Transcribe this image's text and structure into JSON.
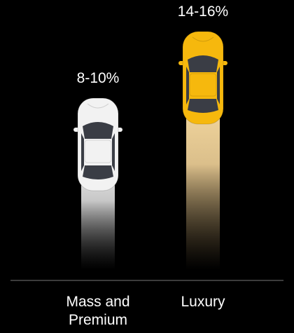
{
  "chart_data": {
    "type": "bar",
    "categories": [
      "Mass and Premium",
      "Luxury"
    ],
    "values": [
      [
        8,
        10
      ],
      [
        14,
        16
      ]
    ],
    "value_labels": [
      "8-10%",
      "14-16%"
    ],
    "colors": [
      "#f2f2f2",
      "#f6b80d"
    ]
  }
}
